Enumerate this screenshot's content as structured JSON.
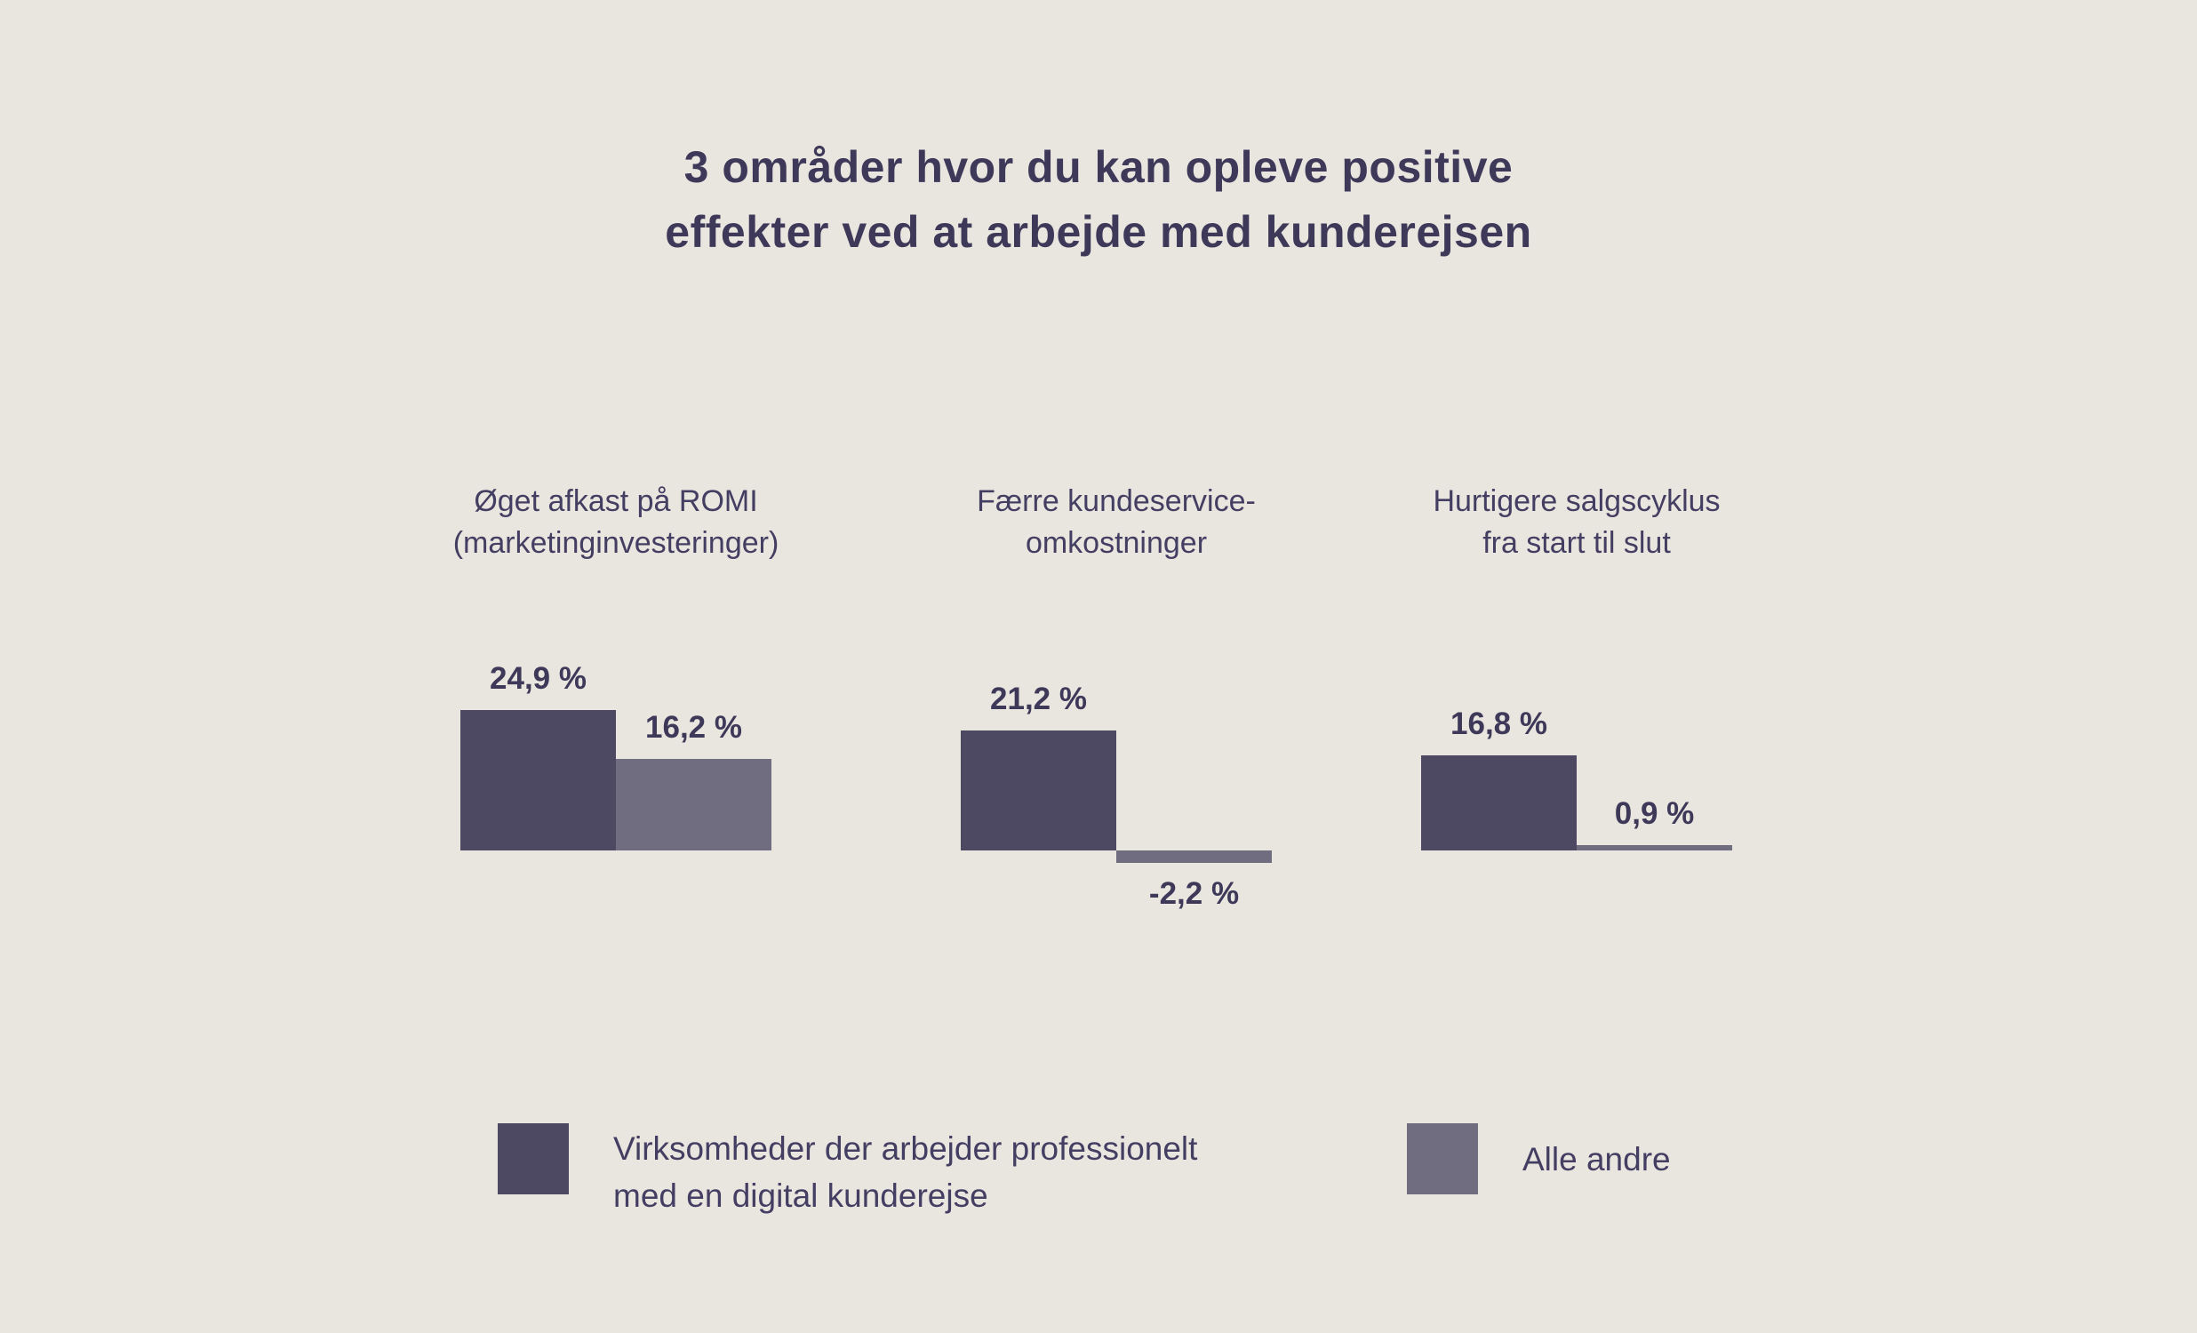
{
  "title": {
    "line1": "3 områder hvor du kan opleve positive",
    "line2": "effekter ved at arbejde med kunderejsen"
  },
  "colors": {
    "background": "#e9e5df",
    "series_dark": "#4d4962",
    "series_light": "#716d80",
    "title_text": "#3e3959",
    "label_text": "#443f62"
  },
  "chart_data": {
    "type": "bar",
    "title": "3 områder hvor du kan opleve positive effekter ved at arbejde med kunderejsen",
    "unit": "%",
    "categories": [
      "Øget afkast på ROMI (marketinginvesteringer)",
      "Færre kundeservice-omkostninger",
      "Hurtigere salgscyklus fra start til slut"
    ],
    "category_lines": [
      [
        "Øget afkast på ROMI",
        "(marketinginvesteringer)"
      ],
      [
        "Færre kundeservice-",
        "omkostninger"
      ],
      [
        "Hurtigere salgscyklus",
        "fra start til slut"
      ]
    ],
    "series": [
      {
        "name": "Virksomheder der arbejder professionelt med en digital kunderejse",
        "color": "#4d4962",
        "values": [
          24.9,
          21.2,
          16.8
        ],
        "labels": [
          "24,9 %",
          "21,2 %",
          "16,8 %"
        ]
      },
      {
        "name": "Alle andre",
        "color": "#716d80",
        "values": [
          16.2,
          -2.2,
          0.9
        ],
        "labels": [
          "16,2 %",
          "-2,2 %",
          "0,9 %"
        ]
      }
    ],
    "ylim": [
      -3,
      27
    ],
    "grid": false,
    "axes_visible": false,
    "legend_position": "bottom"
  },
  "legend": {
    "items": [
      {
        "lines": [
          "Virksomheder der arbejder professionelt",
          "med en digital kunderejse"
        ]
      },
      {
        "lines": [
          "Alle andre"
        ]
      }
    ]
  }
}
